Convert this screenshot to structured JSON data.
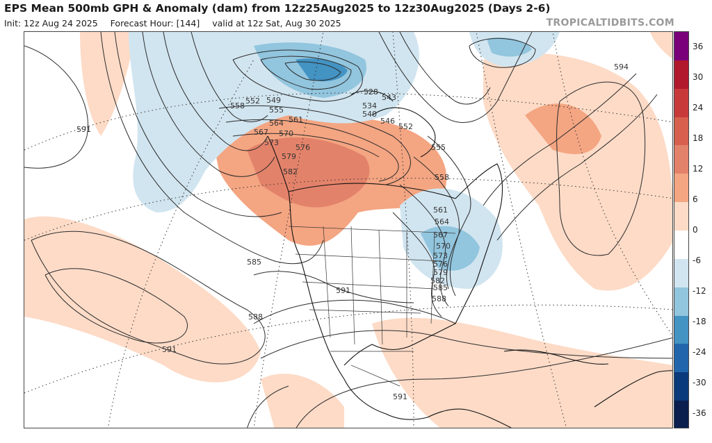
{
  "header": {
    "title": "EPS Mean 500mb GPH & Anomaly (dam) from 12z25Aug2025 to 12z30Aug2025 (Days 2-6)",
    "init": "Init: 12z Aug 24 2025",
    "forecast_hour": "Forecast Hour: [144]",
    "valid": "valid at 12z Sat, Aug 30 2025",
    "brand": "TROPICALTIDBITS.COM"
  },
  "colorbar": {
    "ticks": [
      "36",
      "30",
      "24",
      "18",
      "12",
      "6",
      "0",
      "-6",
      "-12",
      "-18",
      "-24",
      "-30",
      "-36"
    ],
    "colors": [
      "#7a007a",
      "#b2182b",
      "#c83a3a",
      "#d6604d",
      "#e3826a",
      "#f4a582",
      "#fddbc7",
      "#ffffff",
      "#d1e5f0",
      "#92c5de",
      "#4393c3",
      "#2166ac",
      "#0a3a7a",
      "#0a1f4e"
    ]
  },
  "map": {
    "contour_labels": [
      "549",
      "552",
      "555",
      "558",
      "561",
      "564",
      "567",
      "570",
      "573",
      "576",
      "579",
      "582",
      "585",
      "588",
      "591",
      "594",
      "534",
      "540",
      "546",
      "558",
      "561",
      "564",
      "567",
      "570",
      "573",
      "576",
      "579",
      "582",
      "585",
      "588",
      "591",
      "591",
      "591",
      "552",
      "555",
      "543",
      "528"
    ],
    "features": [
      "coastlines",
      "state-borders",
      "lat-lon-grid",
      "height-contours",
      "anomaly-shading"
    ]
  }
}
